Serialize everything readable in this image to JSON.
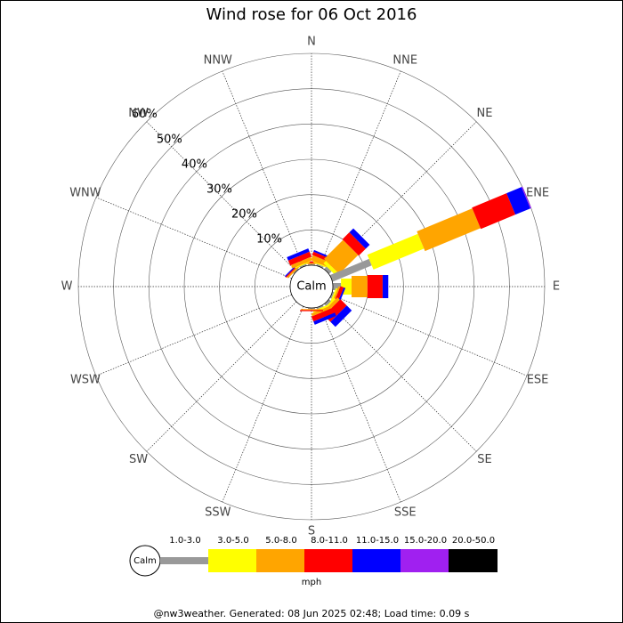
{
  "chart_data": {
    "type": "windrose",
    "title": "Wind rose for 06 Oct 2016",
    "calm_label": "Calm",
    "unit_label": "mph",
    "footer": "@nw3weather. Generated: 08 Jun 2025 02:48; Load time: 0.09 s",
    "categories": [
      "N",
      "NNE",
      "NE",
      "ENE",
      "E",
      "ESE",
      "SE",
      "SSE",
      "S",
      "SSW",
      "SW",
      "WSW",
      "W",
      "WNW",
      "NW",
      "NNW"
    ],
    "rlim": [
      0,
      60
    ],
    "rticks": [
      {
        "value": 10,
        "label": "10%"
      },
      {
        "value": 20,
        "label": "20%"
      },
      {
        "value": 30,
        "label": "30%"
      },
      {
        "value": 40,
        "label": "40%"
      },
      {
        "value": 50,
        "label": "50%"
      },
      {
        "value": 60,
        "label": "60%"
      }
    ],
    "series": [
      {
        "name": "1.0-3.0",
        "color": "#999999",
        "values": [
          0.3,
          0.5,
          1,
          12,
          2.3,
          0.5,
          0.8,
          0.5,
          0.3,
          0,
          0,
          0,
          0,
          0,
          0.3,
          0.5
        ]
      },
      {
        "name": "3.0-5.0",
        "color": "#ffff00",
        "values": [
          0,
          0.3,
          1,
          15.5,
          3,
          0.5,
          0.5,
          0.5,
          0,
          0,
          0,
          0,
          0,
          0,
          0,
          0.3
        ]
      },
      {
        "name": "5.0-8.0",
        "color": "#ffa500",
        "values": [
          0.3,
          1.5,
          7.6,
          17,
          4.5,
          0.5,
          1,
          0.8,
          0.3,
          0,
          0,
          0,
          0,
          0,
          0.5,
          1
        ]
      },
      {
        "name": "8.0-11.0",
        "color": "#ff0000",
        "values": [
          0.5,
          1,
          2.8,
          10.6,
          4.3,
          1,
          2.5,
          1.5,
          0.3,
          0,
          0,
          0,
          0,
          0,
          0.3,
          1.5
        ]
      },
      {
        "name": "11.0-15.0",
        "color": "#0000ff",
        "values": [
          0,
          0.5,
          1.6,
          4.6,
          1.6,
          0.5,
          2,
          1,
          0,
          0,
          0,
          0,
          0,
          0,
          0.3,
          1
        ]
      },
      {
        "name": "15.0-20.0",
        "color": "#a020f0",
        "values": [
          0,
          0,
          0,
          0.3,
          0,
          0,
          0,
          0,
          0,
          0,
          0,
          0,
          0,
          0,
          0,
          0
        ]
      },
      {
        "name": "20.0-50.0",
        "color": "#000000",
        "values": [
          0,
          0,
          0,
          0,
          0,
          0,
          0,
          0,
          0,
          0,
          0,
          0,
          0,
          0,
          0,
          0
        ]
      }
    ]
  }
}
